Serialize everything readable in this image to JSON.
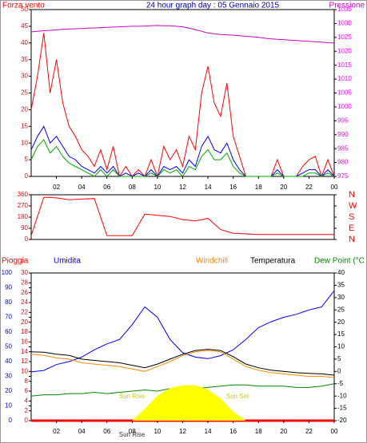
{
  "chart_data": [
    {
      "type": "line",
      "title": "24 hour graph day : 05 Gennaio 2015",
      "ylabel": "Forza vento",
      "y2label": "Pressione",
      "axis_colors": {
        "y": "#ff0000",
        "y2": "#ff00ff"
      },
      "x": [
        0,
        0.5,
        1,
        1.5,
        2,
        2.5,
        3,
        3.5,
        4,
        4.5,
        5,
        5.5,
        6,
        6.5,
        7,
        7.5,
        8,
        8.5,
        9,
        9.5,
        10,
        10.5,
        11,
        11.5,
        12,
        12.5,
        13,
        13.5,
        14,
        14.5,
        15,
        15.5,
        16,
        16.5,
        17,
        17.5,
        18,
        18.5,
        19,
        19.5,
        20,
        20.5,
        21,
        21.5,
        22,
        22.5,
        23,
        23.5,
        24
      ],
      "xlim": [
        0,
        24
      ],
      "xticks": [
        {
          "value": 2,
          "label": "02"
        },
        {
          "value": 4,
          "label": "04"
        },
        {
          "value": 6,
          "label": "06"
        },
        {
          "value": 8,
          "label": "08"
        },
        10,
        12,
        14,
        16,
        18,
        20,
        22,
        {
          "value": 24,
          "label": "00"
        }
      ],
      "ylim": [
        0,
        50
      ],
      "yticks": [
        0,
        5,
        10,
        15,
        20,
        25,
        30,
        35,
        40,
        45,
        50
      ],
      "y2lim": [
        975,
        1035
      ],
      "y2ticks": [
        975,
        980,
        985,
        990,
        995,
        1000,
        1005,
        1010,
        1015,
        1020,
        1025,
        1030,
        1035
      ],
      "series": [
        {
          "color": "#ff0000",
          "values": [
            20,
            30,
            43,
            25,
            35,
            22,
            15,
            12,
            8,
            6,
            3,
            8,
            2,
            9,
            0,
            3,
            0,
            2,
            0,
            5,
            0,
            9,
            5,
            8,
            3,
            12,
            8,
            25,
            33,
            22,
            18,
            28,
            12,
            6,
            0,
            0,
            0,
            0,
            0,
            5,
            0,
            0,
            0,
            3,
            5,
            6,
            0,
            5,
            0
          ]
        },
        {
          "color": "#0000ff",
          "values": [
            8,
            12,
            15,
            10,
            12,
            9,
            6,
            5,
            3,
            2,
            1,
            3,
            1,
            3,
            0,
            1,
            0,
            1,
            0,
            2,
            0,
            3,
            2,
            3,
            1,
            5,
            3,
            9,
            12,
            8,
            7,
            10,
            5,
            2,
            0,
            0,
            0,
            0,
            0,
            2,
            0,
            0,
            0,
            1,
            2,
            2,
            0,
            2,
            0
          ]
        },
        {
          "color": "#00aa00",
          "values": [
            5,
            9,
            11,
            7,
            9,
            6,
            4,
            3,
            2,
            1,
            0,
            2,
            0,
            2,
            0,
            0,
            0,
            0,
            0,
            1,
            0,
            2,
            1,
            2,
            0,
            3,
            2,
            6,
            8,
            5,
            5,
            7,
            3,
            1,
            0,
            0,
            0,
            0,
            0,
            1,
            0,
            0,
            0,
            0,
            1,
            1,
            0,
            1,
            0
          ]
        },
        {
          "color": "#cc00cc",
          "axis": "y2",
          "values": [
            1027,
            1027.2,
            1027.4,
            1027.5,
            1027.7,
            1027.9,
            1028,
            1028.1,
            1028.2,
            1028.3,
            1028.4,
            1028.5,
            1028.6,
            1028.7,
            1028.8,
            1028.9,
            1029,
            1029,
            1029.1,
            1029.2,
            1029.3,
            1029.2,
            1029.2,
            1029,
            1028.8,
            1028.3,
            1027.8,
            1027.2,
            1026.6,
            1026.3,
            1026,
            1025.9,
            1025.8,
            1025.6,
            1025.4,
            1025.2,
            1025,
            1024.7,
            1024.5,
            1024.3,
            1024.2,
            1024,
            1023.9,
            1023.7,
            1023.6,
            1023.4,
            1023.3,
            1023.1,
            1023
          ]
        }
      ]
    },
    {
      "type": "line",
      "axis_colors": {
        "y": "#ff0000",
        "y2": "#ff0000"
      },
      "x": [
        0,
        1,
        2,
        3,
        4,
        5,
        6,
        7,
        8,
        9,
        10,
        11,
        12,
        13,
        14,
        15,
        16,
        17,
        18,
        19,
        20,
        21,
        22,
        23,
        24
      ],
      "xlim": [
        0,
        24
      ],
      "ylim": [
        0,
        360
      ],
      "yticks": [
        0,
        90,
        180,
        270,
        360
      ],
      "y2lim": [
        0,
        360
      ],
      "y2ticks": [
        {
          "value": 0,
          "label": "N"
        },
        {
          "value": 90,
          "label": "E"
        },
        {
          "value": 180,
          "label": "S"
        },
        {
          "value": 270,
          "label": "W"
        },
        {
          "value": 360,
          "label": "N"
        }
      ],
      "series": [
        {
          "color": "#ff0000",
          "values": [
            30,
            340,
            335,
            320,
            325,
            330,
            30,
            30,
            30,
            205,
            195,
            185,
            160,
            150,
            170,
            80,
            50,
            45,
            40,
            40,
            40,
            40,
            40,
            40,
            40
          ]
        }
      ]
    },
    {
      "type": "line",
      "axis_colors": {
        "y": "#0000ff",
        "y2": "#000000",
        "y3": "#ff0000"
      },
      "x": [
        0,
        1,
        2,
        3,
        4,
        5,
        6,
        7,
        8,
        9,
        10,
        11,
        12,
        13,
        14,
        15,
        16,
        17,
        18,
        19,
        20,
        21,
        22,
        23,
        24
      ],
      "xlim": [
        0,
        24
      ],
      "xticks": [
        {
          "value": 2,
          "label": "02"
        },
        {
          "value": 4,
          "label": "04"
        },
        {
          "value": 6,
          "label": "06"
        },
        {
          "value": 8,
          "label": "08"
        },
        10,
        12,
        14,
        16,
        18,
        20,
        22,
        {
          "value": 24,
          "label": "00"
        }
      ],
      "ylim": [
        0,
        100
      ],
      "yticks": [
        0,
        10,
        20,
        30,
        40,
        50,
        60,
        70,
        80,
        90,
        100
      ],
      "y3lim": [
        0,
        30
      ],
      "y3ticks": [
        0,
        2,
        4,
        6,
        8,
        10,
        12,
        14,
        16,
        18,
        20,
        22,
        24,
        26,
        28,
        30
      ],
      "y2lim": [
        -20,
        40
      ],
      "y2ticks": [
        -20,
        -15,
        -10,
        -5,
        0,
        5,
        10,
        15,
        20,
        25,
        30,
        35,
        40
      ],
      "annotations": [
        "Sun Rise",
        "Sun Set",
        "Sun Rise"
      ],
      "series": [
        {
          "name": "Pioggia",
          "color": "#ff0000",
          "axis": "y3",
          "values": [
            0,
            0,
            0,
            0,
            0,
            0,
            0,
            0,
            0,
            0,
            0,
            0,
            0,
            0,
            0,
            0,
            0,
            0,
            0,
            0,
            0,
            0,
            0,
            0,
            0
          ]
        },
        {
          "name": "Umidita",
          "color": "#0000ff",
          "values": [
            33,
            34,
            38,
            40,
            43,
            48,
            52,
            55,
            65,
            77,
            70,
            55,
            46,
            43,
            42,
            44,
            48,
            55,
            63,
            67,
            70,
            72,
            75,
            77,
            88
          ]
        },
        {
          "name": "Windchill",
          "color": "#ff8800",
          "axis": "y2",
          "values": [
            7,
            6.5,
            5.5,
            5,
            3.5,
            3,
            2.5,
            2,
            1,
            0,
            2,
            4,
            6.5,
            8,
            8.5,
            8,
            5,
            2,
            0.5,
            -0.5,
            -1,
            -1.5,
            -2,
            -2,
            -2.5
          ]
        },
        {
          "name": "Temperatura",
          "color": "#000000",
          "axis": "y2",
          "values": [
            8,
            7.8,
            7,
            6.5,
            5,
            4.5,
            4,
            3.5,
            2.5,
            1.5,
            3,
            5,
            7,
            8.5,
            9,
            8.5,
            6,
            3,
            1.5,
            0.5,
            0,
            -0.5,
            -0.8,
            -1,
            -1.5
          ]
        },
        {
          "name": "Dew Point (°C",
          "color": "#008800",
          "axis": "y2",
          "values": [
            -10,
            -9.5,
            -9.5,
            -9,
            -9,
            -8.5,
            -9,
            -8.5,
            -8,
            -7.5,
            -8,
            -7,
            -7,
            -7,
            -6.5,
            -6,
            -5.5,
            -5.5,
            -6,
            -6,
            -6,
            -6.5,
            -6.5,
            -6,
            -5
          ]
        },
        {
          "color": "#ffff00",
          "fill": true,
          "values": [
            0,
            0,
            0,
            0,
            0,
            0,
            0,
            0,
            0,
            8,
            17,
            22,
            24,
            24,
            21,
            15,
            6,
            0,
            0,
            0,
            0,
            0,
            0,
            0,
            0
          ]
        }
      ]
    }
  ]
}
